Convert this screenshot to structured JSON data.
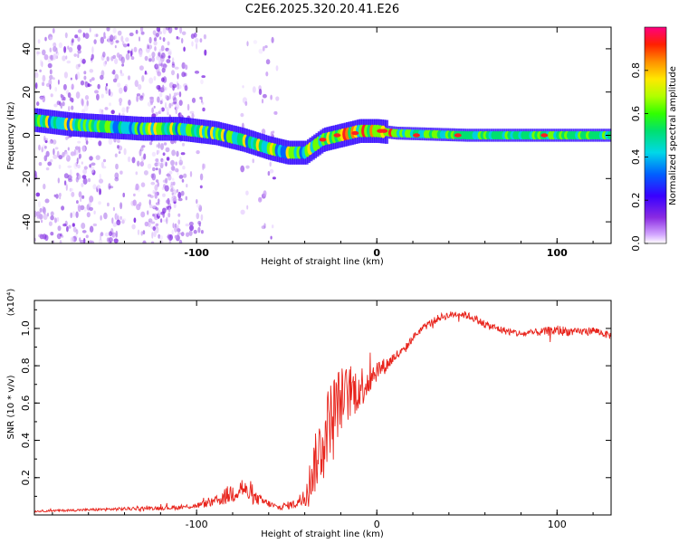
{
  "title": "C2E6.2025.320.20.41.E26",
  "chart_data": [
    {
      "type": "heatmap",
      "xlabel": "Height of straight line (km)",
      "ylabel": "Frequency (Hz)",
      "xlim": [
        -190,
        130
      ],
      "ylim": [
        -50,
        50
      ],
      "xticks": [
        -100,
        0,
        100
      ],
      "yticks": [
        -40,
        -20,
        0,
        20,
        40
      ],
      "ridge_x": [
        -190,
        -170,
        -150,
        -130,
        -110,
        -90,
        -75,
        -60,
        -50,
        -40,
        -30,
        -20,
        -10,
        0,
        10,
        50,
        100,
        130
      ],
      "ridge_y": [
        7,
        5,
        4,
        3,
        3,
        1,
        -2,
        -6,
        -8,
        -8,
        -2,
        0,
        2,
        2,
        1,
        0,
        0,
        0
      ],
      "colorbar": {
        "label": "Normalized spectral amplitude",
        "range": [
          0,
          1
        ],
        "ticks": [
          0.0,
          0.2,
          0.4,
          0.6,
          0.8
        ]
      }
    },
    {
      "type": "line",
      "xlabel": "Height of straight line (km)",
      "ylabel": "SNR (10 * v/v)",
      "scale_label": "(x10⁴)",
      "xlim": [
        -190,
        130
      ],
      "ylim": [
        0.0,
        1.15
      ],
      "xticks": [
        -100,
        0,
        100
      ],
      "yticks": [
        0.2,
        0.4,
        0.6,
        0.8,
        1.0
      ],
      "series": [
        {
          "name": "SNR",
          "color": "#e8241c",
          "x": [
            -190,
            -170,
            -150,
            -130,
            -110,
            -100,
            -90,
            -80,
            -75,
            -70,
            -65,
            -60,
            -55,
            -50,
            -45,
            -40,
            -35,
            -30,
            -25,
            -20,
            -15,
            -10,
            -5,
            0,
            5,
            10,
            15,
            20,
            25,
            30,
            35,
            40,
            45,
            50,
            55,
            60,
            70,
            80,
            90,
            100,
            110,
            120,
            130
          ],
          "y": [
            0.02,
            0.025,
            0.03,
            0.035,
            0.04,
            0.05,
            0.07,
            0.12,
            0.15,
            0.1,
            0.08,
            0.06,
            0.04,
            0.05,
            0.06,
            0.1,
            0.25,
            0.4,
            0.55,
            0.62,
            0.65,
            0.68,
            0.72,
            0.78,
            0.8,
            0.85,
            0.88,
            0.95,
            1.0,
            1.03,
            1.06,
            1.07,
            1.08,
            1.07,
            1.05,
            1.02,
            0.99,
            0.97,
            0.98,
            0.99,
            0.98,
            0.99,
            0.96
          ],
          "noise": [
            0.005,
            0.006,
            0.008,
            0.01,
            0.012,
            0.015,
            0.025,
            0.06,
            0.06,
            0.04,
            0.03,
            0.02,
            0.015,
            0.02,
            0.025,
            0.05,
            0.15,
            0.2,
            0.2,
            0.18,
            0.15,
            0.12,
            0.1,
            0.06,
            0.04,
            0.03,
            0.025,
            0.02,
            0.02,
            0.02,
            0.02,
            0.02,
            0.02,
            0.02,
            0.02,
            0.02,
            0.02,
            0.02,
            0.02,
            0.03,
            0.02,
            0.02,
            0.02
          ]
        }
      ]
    }
  ]
}
